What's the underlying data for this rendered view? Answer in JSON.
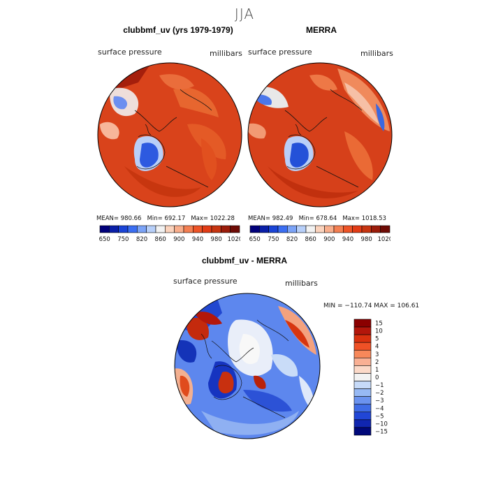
{
  "season_title": "JJA",
  "panel_left": {
    "title": "clubbmf_uv (yrs 1979-1979)",
    "field_label": "surface pressure",
    "units_label": "millibars",
    "stats": {
      "mean_label": "MEAN=",
      "mean": "980.66",
      "min_label": "Min=",
      "min": "692.17",
      "max_label": "Max=",
      "max": "1022.28"
    }
  },
  "panel_right": {
    "title": "MERRA",
    "field_label": "surface pressure",
    "units_label": "millibars",
    "stats": {
      "mean_label": "MEAN=",
      "mean": "982.49",
      "min_label": "Min=",
      "min": "678.64",
      "max_label": "Max=",
      "max": "1018.53"
    }
  },
  "panel_diff": {
    "title": "clubbmf_uv - MERRA",
    "field_label": "surface pressure",
    "units_label": "millibars",
    "minmax_text": "MIN = −110.74 MAX = 106.61"
  },
  "chart_data": [
    {
      "type": "heatmap",
      "projection": "polar stereographic (north pole)",
      "title": "clubbmf_uv (yrs 1979-1979)",
      "variable": "surface pressure",
      "units": "millibars",
      "mean": 980.66,
      "min": 692.17,
      "max": 1022.28,
      "colorbar_levels": [
        650,
        700,
        750,
        800,
        820,
        840,
        860,
        880,
        900,
        920,
        940,
        960,
        980,
        1000,
        1020
      ],
      "colorbar_tick_labels": [
        "650",
        "750",
        "820",
        "860",
        "900",
        "940",
        "980",
        "1020"
      ]
    },
    {
      "type": "heatmap",
      "projection": "polar stereographic (north pole)",
      "title": "MERRA",
      "variable": "surface pressure",
      "units": "millibars",
      "mean": 982.49,
      "min": 678.64,
      "max": 1018.53,
      "colorbar_levels": [
        650,
        700,
        750,
        800,
        820,
        840,
        860,
        880,
        900,
        920,
        940,
        960,
        980,
        1000,
        1020
      ],
      "colorbar_tick_labels": [
        "650",
        "750",
        "820",
        "860",
        "900",
        "940",
        "980",
        "1020"
      ]
    },
    {
      "type": "heatmap",
      "projection": "polar stereographic (north pole)",
      "title": "clubbmf_uv - MERRA",
      "variable": "surface pressure",
      "units": "millibars",
      "min": -110.74,
      "max": 106.61,
      "colorbar_levels": [
        15,
        10,
        5,
        4,
        3,
        2,
        1,
        0,
        -1,
        -2,
        -3,
        -4,
        -5,
        -10,
        -15
      ],
      "colorbar_tick_labels": [
        "15",
        "10",
        "5",
        "4",
        "3",
        "2",
        "1",
        "0",
        "−1",
        "−2",
        "−3",
        "−4",
        "−5",
        "−10",
        "−15"
      ]
    }
  ],
  "colors": {
    "abs_colorbar": [
      "#00007a",
      "#0a1fa8",
      "#1a44d6",
      "#3b6ef2",
      "#7ba3f7",
      "#b7cff9",
      "#f2f2f2",
      "#fbd3bd",
      "#f9ae8c",
      "#f47f52",
      "#ee5427",
      "#e23c16",
      "#c73511",
      "#9b1c0a",
      "#6e0b05"
    ],
    "diff_colorbar": [
      "#8b0000",
      "#b3160b",
      "#d9310f",
      "#ef5126",
      "#f7885a",
      "#f9b094",
      "#fbd9c8",
      "#f2f2f2",
      "#c6daf8",
      "#97b9f4",
      "#6b93ef",
      "#3f6ce6",
      "#2146d6",
      "#1026b0",
      "#00087a"
    ],
    "map_ocean_warm": "#d8401a",
    "map_land_warm": "#e0541f",
    "map_low_blue": "#2a55d8"
  }
}
